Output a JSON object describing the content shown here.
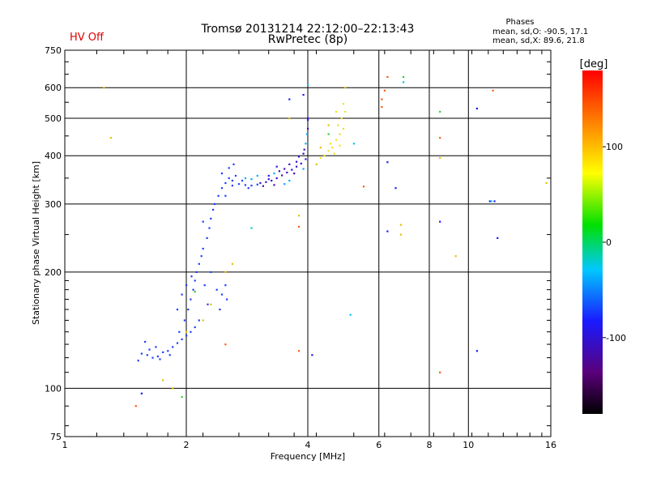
{
  "header": {
    "hv_status": "HV Off",
    "hv_color": "#e00000",
    "title_line1": "Tromsø 20131214 22:12:00–22:13:43",
    "title_line2": "RwPretec (8p)",
    "phases_title": "Phases",
    "phases_o": "mean, sd,O: -90.5, 17.1",
    "phases_x": "mean, sd,X:  89.6, 21.8"
  },
  "chart_data": {
    "type": "scatter",
    "title": "Tromsø 20131214 22:12:00–22:13:43",
    "subtitle": "RwPretec (8p)",
    "xlabel": "Frequency [MHz]",
    "ylabel": "Stationary phase Virtual Height [km]",
    "x_scale": "log",
    "y_scale": "log",
    "xlim": [
      1,
      16
    ],
    "ylim": [
      75,
      750
    ],
    "x_ticks": [
      1,
      2,
      4,
      6,
      8,
      10,
      16
    ],
    "x_tick_labels": [
      "1",
      "2",
      "4",
      "6",
      "8",
      "10",
      "16"
    ],
    "y_ticks": [
      75,
      100,
      200,
      300,
      400,
      500,
      600,
      750
    ],
    "y_tick_labels": [
      "75",
      "100",
      "200",
      "300",
      "400",
      "500",
      "600",
      "750"
    ],
    "grid": true,
    "colorbar": {
      "label": "[deg]",
      "range": [
        -180,
        180
      ],
      "ticks": [
        100,
        0,
        -100
      ],
      "tick_labels": [
        "100",
        "0",
        "-100"
      ]
    },
    "series": [
      {
        "points": [
          [
            1.52,
            118
          ],
          [
            1.55,
            123
          ],
          [
            1.6,
            122
          ],
          [
            1.65,
            120
          ],
          [
            1.7,
            121
          ],
          [
            1.75,
            124
          ],
          [
            1.8,
            125
          ],
          [
            1.85,
            128
          ],
          [
            1.9,
            131
          ],
          [
            1.95,
            134
          ],
          [
            2.0,
            137
          ],
          [
            2.05,
            140
          ],
          [
            2.1,
            144
          ],
          [
            1.62,
            126
          ],
          [
            1.72,
            119
          ],
          [
            1.82,
            122
          ],
          [
            1.92,
            140
          ],
          [
            1.98,
            150
          ],
          [
            2.02,
            160
          ],
          [
            2.05,
            170
          ],
          [
            2.08,
            180
          ],
          [
            2.1,
            190
          ],
          [
            2.12,
            200
          ],
          [
            2.15,
            210
          ],
          [
            2.18,
            220
          ],
          [
            2.2,
            230
          ],
          [
            2.25,
            245
          ],
          [
            2.28,
            260
          ],
          [
            2.3,
            275
          ],
          [
            2.33,
            290
          ],
          [
            2.35,
            300
          ],
          [
            1.9,
            160
          ],
          [
            1.95,
            175
          ],
          [
            2.0,
            185
          ],
          [
            2.06,
            195
          ],
          [
            2.22,
            185
          ],
          [
            2.3,
            200
          ],
          [
            2.38,
            180
          ],
          [
            2.45,
            175
          ],
          [
            2.5,
            185
          ],
          [
            2.4,
            315
          ],
          [
            2.45,
            330
          ],
          [
            2.5,
            340
          ],
          [
            2.55,
            350
          ],
          [
            2.6,
            345
          ],
          [
            2.7,
            338
          ],
          [
            2.8,
            336
          ],
          [
            2.9,
            335
          ],
          [
            3.0,
            337
          ],
          [
            2.45,
            360
          ],
          [
            2.55,
            372
          ],
          [
            2.65,
            355
          ],
          [
            2.75,
            345
          ],
          [
            2.6,
            335
          ],
          [
            1.58,
            132
          ],
          [
            1.68,
            128
          ],
          [
            2.15,
            150
          ],
          [
            2.26,
            165
          ],
          [
            2.42,
            160
          ],
          [
            2.52,
            170
          ],
          [
            2.5,
            315
          ],
          [
            2.62,
            380
          ],
          [
            2.85,
            330
          ],
          [
            2.2,
            270
          ]
        ],
        "color": "#1f3fff"
      },
      {
        "points": [
          [
            3.05,
            340
          ],
          [
            3.15,
            342
          ],
          [
            3.25,
            345
          ],
          [
            3.35,
            350
          ],
          [
            3.45,
            356
          ],
          [
            3.55,
            362
          ],
          [
            3.65,
            368
          ],
          [
            3.75,
            375
          ],
          [
            3.85,
            382
          ],
          [
            3.95,
            392
          ],
          [
            3.2,
            348
          ],
          [
            3.3,
            336
          ],
          [
            3.4,
            365
          ],
          [
            3.5,
            370
          ],
          [
            3.6,
            380
          ],
          [
            3.7,
            360
          ],
          [
            3.8,
            398
          ],
          [
            3.9,
            405
          ],
          [
            3.1,
            334
          ],
          [
            3.35,
            375
          ],
          [
            3.75,
            386
          ],
          [
            3.92,
            415
          ],
          [
            4.0,
            470
          ],
          [
            4.0,
            495
          ]
        ],
        "color": "#3a10d0"
      },
      {
        "points": [
          [
            3.0,
            355
          ],
          [
            3.3,
            360
          ],
          [
            3.6,
            345
          ],
          [
            2.8,
            350
          ],
          [
            2.9,
            348
          ],
          [
            3.5,
            338
          ],
          [
            3.9,
            370
          ],
          [
            3.95,
            430
          ],
          [
            3.98,
            455
          ]
        ],
        "color": "#00aaff"
      },
      {
        "points": [
          [
            4.4,
            400
          ],
          [
            4.5,
            412
          ],
          [
            4.6,
            420
          ],
          [
            4.7,
            440
          ],
          [
            4.8,
            455
          ],
          [
            4.9,
            470
          ],
          [
            4.75,
            480
          ],
          [
            4.85,
            500
          ],
          [
            4.95,
            520
          ],
          [
            4.55,
            430
          ],
          [
            4.65,
            405
          ],
          [
            4.8,
            425
          ],
          [
            4.3,
            395
          ],
          [
            4.7,
            520
          ],
          [
            4.9,
            545
          ]
        ],
        "color": "#f0e020"
      },
      {
        "points": [
          [
            1.25,
            600
          ],
          [
            1.3,
            445
          ],
          [
            1.75,
            105
          ],
          [
            1.85,
            100
          ],
          [
            2.0,
            140
          ],
          [
            2.2,
            150
          ],
          [
            2.3,
            165
          ],
          [
            2.5,
            200
          ],
          [
            2.6,
            210
          ],
          [
            4.2,
            380
          ],
          [
            4.3,
            420
          ],
          [
            4.5,
            480
          ],
          [
            4.95,
            600
          ],
          [
            6.8,
            265
          ],
          [
            6.8,
            250
          ],
          [
            9.3,
            220
          ],
          [
            15.6,
            340
          ],
          [
            8.5,
            395
          ],
          [
            3.6,
            500
          ],
          [
            3.8,
            280
          ]
        ],
        "color": "#e8c000"
      },
      {
        "points": [
          [
            1.95,
            95
          ],
          [
            2.1,
            178
          ],
          [
            8.5,
            520
          ],
          [
            6.9,
            640
          ],
          [
            4.5,
            455
          ]
        ],
        "color": "#30d030"
      },
      {
        "points": [
          [
            3.8,
            125
          ],
          [
            5.5,
            333
          ],
          [
            6.1,
            560
          ],
          [
            6.1,
            535
          ],
          [
            6.3,
            640
          ],
          [
            8.5,
            445
          ],
          [
            8.5,
            110
          ],
          [
            11.5,
            590
          ],
          [
            6.2,
            590
          ],
          [
            3.8,
            262
          ],
          [
            1.5,
            90
          ],
          [
            2.5,
            130
          ]
        ],
        "color": "#ff5a10"
      },
      {
        "points": [
          [
            3.6,
            560
          ],
          [
            3.9,
            575
          ],
          [
            4.0,
            500
          ],
          [
            6.3,
            385
          ],
          [
            6.3,
            255
          ],
          [
            6.6,
            330
          ],
          [
            8.5,
            270
          ],
          [
            10.5,
            530
          ],
          [
            11.3,
            305
          ],
          [
            11.6,
            305
          ],
          [
            11.8,
            245
          ],
          [
            10.5,
            125
          ],
          [
            4.1,
            122
          ],
          [
            1.55,
            97
          ],
          [
            3.2,
            355
          ]
        ],
        "color": "#1a1aff"
      },
      {
        "points": [
          [
            5.1,
            155
          ],
          [
            4.0,
            610
          ],
          [
            5.2,
            430
          ],
          [
            2.9,
            260
          ],
          [
            6.9,
            620
          ],
          [
            11.4,
            305
          ]
        ],
        "color": "#00c8e8"
      }
    ]
  }
}
